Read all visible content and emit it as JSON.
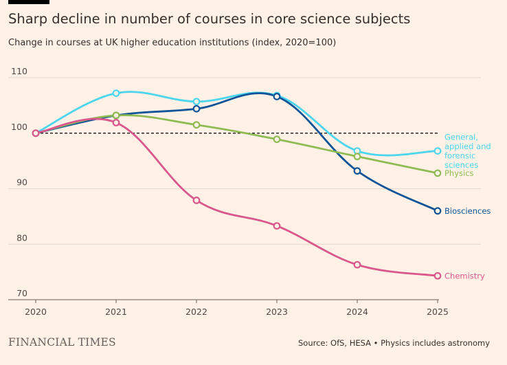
{
  "title": "Sharp decline in number of courses in core science subjects",
  "subtitle": "Change in courses at UK higher education institutions (index, 2020=100)",
  "brand": "FINANCIAL TIMES",
  "source": "Source: OfS, HESA • Physics includes astronomy",
  "chart_data": {
    "type": "line",
    "title": "Sharp decline in number of courses in core science subjects",
    "subtitle": "Change in courses at UK higher education institutions (index, 2020=100)",
    "x": [
      2020,
      2021,
      2022,
      2023,
      2024,
      2025
    ],
    "x_ticks": [
      "2020",
      "2021",
      "2022",
      "2023",
      "2024",
      "2025"
    ],
    "y_ticks": [
      "110",
      "100",
      "90",
      "80",
      "70"
    ],
    "ylim": [
      70,
      110
    ],
    "baseline": 100,
    "grid": true,
    "legend": "direct labels at right end of lines",
    "series": [
      {
        "name": "General, applied and forensic sciences",
        "label_lines": [
          "General,",
          "applied and",
          "forensic",
          "sciences"
        ],
        "color": "#4BD5EE",
        "values": [
          100,
          107.2,
          105.7,
          106.8,
          96.8,
          96.8
        ]
      },
      {
        "name": "Physics",
        "label_lines": [
          "Physics"
        ],
        "color": "#8FBB53",
        "values": [
          100,
          103.2,
          101.5,
          98.9,
          95.8,
          92.8
        ]
      },
      {
        "name": "Biosciences",
        "label_lines": [
          "Biosciences"
        ],
        "color": "#0F5499",
        "values": [
          100,
          103.2,
          104.4,
          106.6,
          93.2,
          86.0
        ]
      },
      {
        "name": "Chemistry",
        "label_lines": [
          "Chemistry"
        ],
        "color": "#D9578C",
        "values": [
          100,
          101.9,
          87.9,
          83.3,
          76.3,
          74.3
        ]
      }
    ]
  }
}
